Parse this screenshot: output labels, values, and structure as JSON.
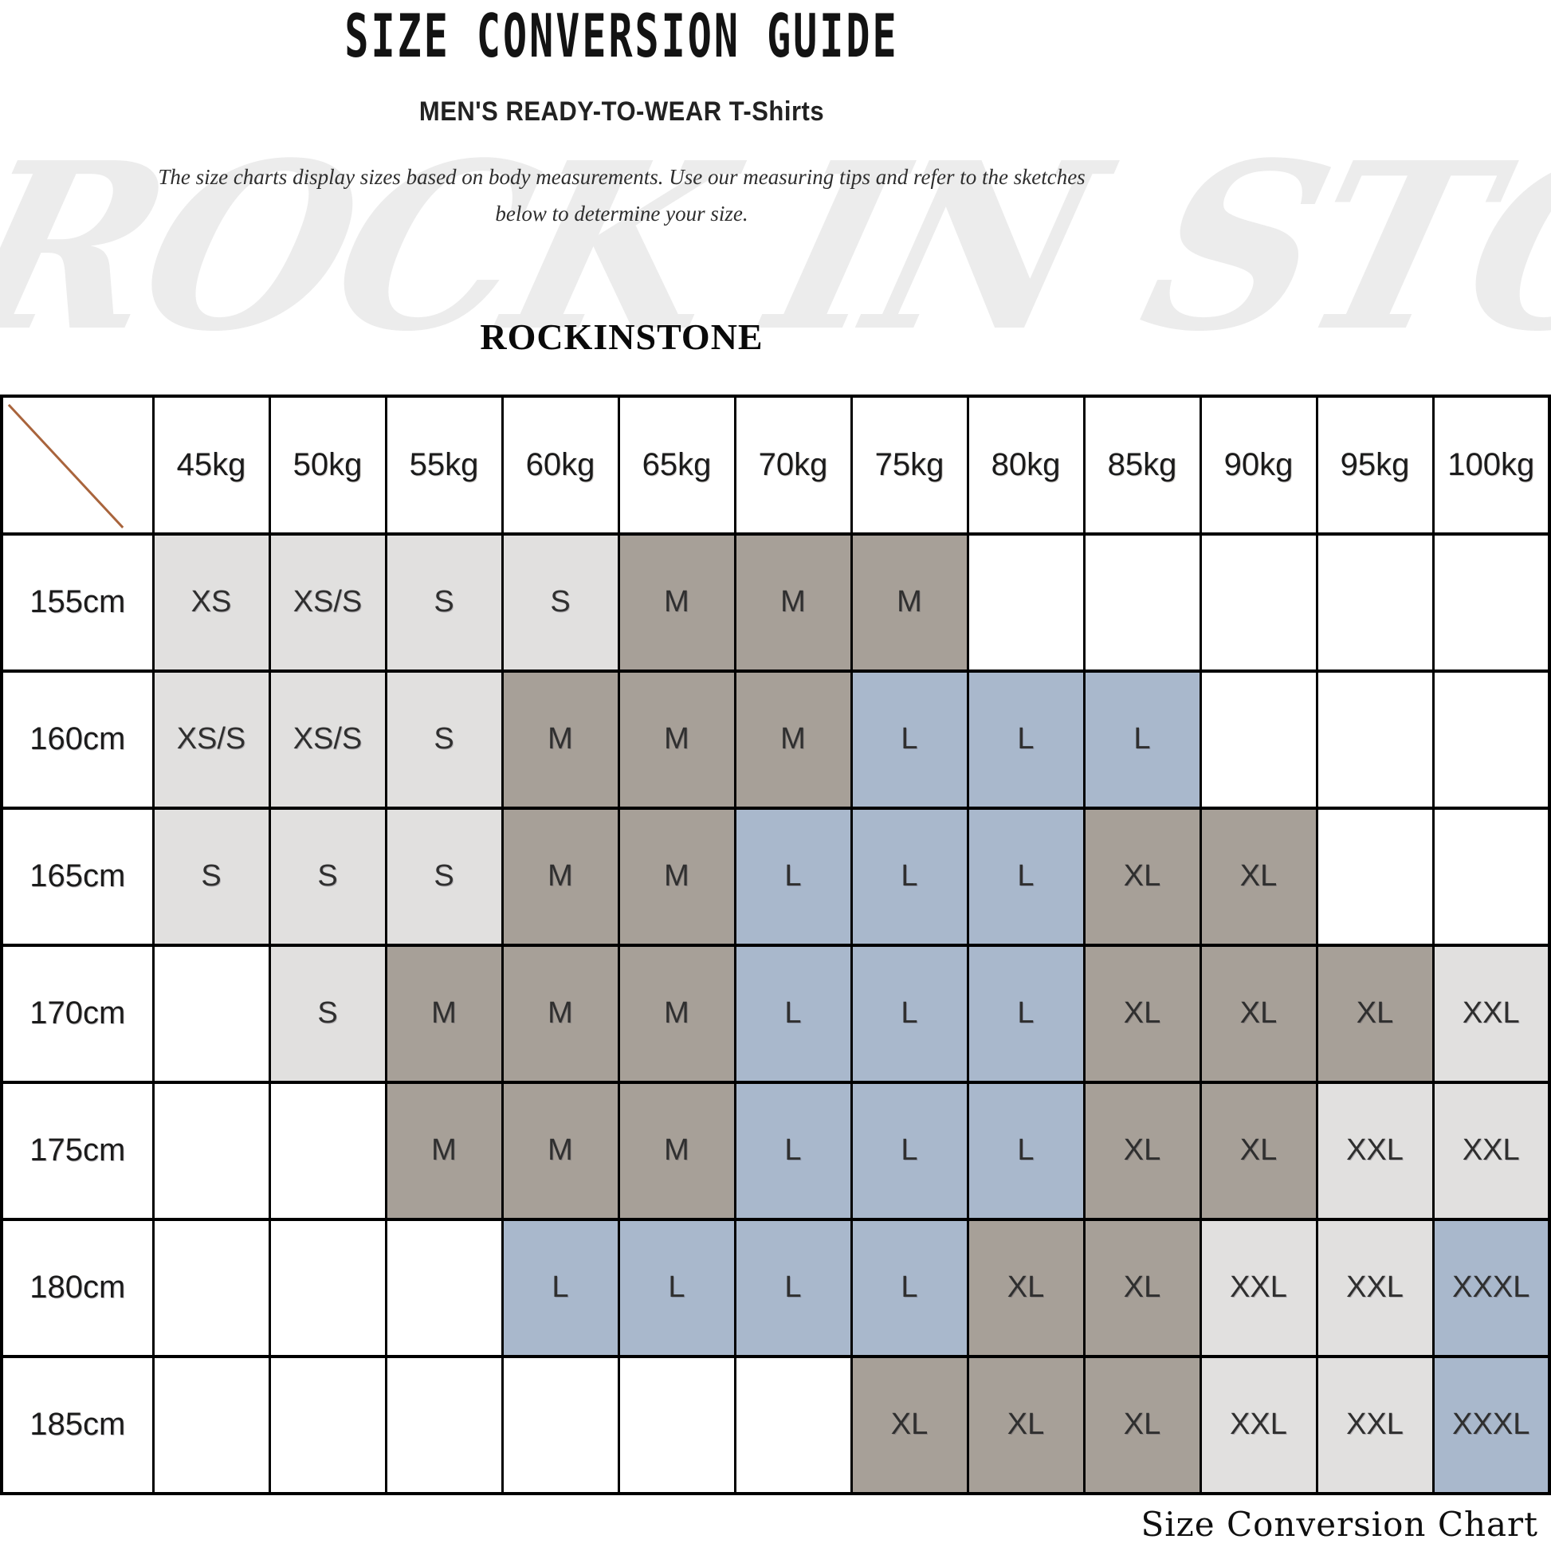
{
  "page": {
    "title": "SIZE CONVERSION GUIDE",
    "subtitle": "MEN'S READY-TO-WEAR T-Shirts",
    "description": {
      "line1": "The size charts display sizes based on body measurements. Use our measuring tips and refer to the sketches",
      "line2": "below to determine your size."
    },
    "brand": "ROCKINSTONE",
    "watermark": "ROCK IN STONE",
    "footer_label": "Size Conversion Chart"
  },
  "colors": {
    "light": "#e1e0df",
    "taupe": "#a7a098",
    "blue": "#a9b8cc",
    "diagonal": "#a9643c",
    "border": "#000000"
  },
  "table": {
    "corner_label": "",
    "weights": [
      "45kg",
      "50kg",
      "55kg",
      "60kg",
      "65kg",
      "70kg",
      "75kg",
      "80kg",
      "85kg",
      "90kg",
      "95kg",
      "100kg"
    ],
    "rows": [
      {
        "height": "155cm",
        "cells": [
          {
            "v": "XS",
            "c": "light"
          },
          {
            "v": "XS/S",
            "c": "light"
          },
          {
            "v": "S",
            "c": "light"
          },
          {
            "v": "S",
            "c": "light"
          },
          {
            "v": "M",
            "c": "taupe"
          },
          {
            "v": "M",
            "c": "taupe"
          },
          {
            "v": "M",
            "c": "taupe"
          },
          {
            "v": "",
            "c": ""
          },
          {
            "v": "",
            "c": ""
          },
          {
            "v": "",
            "c": ""
          },
          {
            "v": "",
            "c": ""
          },
          {
            "v": "",
            "c": ""
          }
        ]
      },
      {
        "height": "160cm",
        "cells": [
          {
            "v": "XS/S",
            "c": "light"
          },
          {
            "v": "XS/S",
            "c": "light"
          },
          {
            "v": "S",
            "c": "light"
          },
          {
            "v": "M",
            "c": "taupe"
          },
          {
            "v": "M",
            "c": "taupe"
          },
          {
            "v": "M",
            "c": "taupe"
          },
          {
            "v": "L",
            "c": "blue"
          },
          {
            "v": "L",
            "c": "blue"
          },
          {
            "v": "L",
            "c": "blue"
          },
          {
            "v": "",
            "c": ""
          },
          {
            "v": "",
            "c": ""
          },
          {
            "v": "",
            "c": ""
          }
        ]
      },
      {
        "height": "165cm",
        "cells": [
          {
            "v": "S",
            "c": "light"
          },
          {
            "v": "S",
            "c": "light"
          },
          {
            "v": "S",
            "c": "light"
          },
          {
            "v": "M",
            "c": "taupe"
          },
          {
            "v": "M",
            "c": "taupe"
          },
          {
            "v": "L",
            "c": "blue"
          },
          {
            "v": "L",
            "c": "blue"
          },
          {
            "v": "L",
            "c": "blue"
          },
          {
            "v": "XL",
            "c": "taupe"
          },
          {
            "v": "XL",
            "c": "taupe"
          },
          {
            "v": "",
            "c": ""
          },
          {
            "v": "",
            "c": ""
          }
        ]
      },
      {
        "height": "170cm",
        "cells": [
          {
            "v": "",
            "c": ""
          },
          {
            "v": "S",
            "c": "light"
          },
          {
            "v": "M",
            "c": "taupe"
          },
          {
            "v": "M",
            "c": "taupe"
          },
          {
            "v": "M",
            "c": "taupe"
          },
          {
            "v": "L",
            "c": "blue"
          },
          {
            "v": "L",
            "c": "blue"
          },
          {
            "v": "L",
            "c": "blue"
          },
          {
            "v": "XL",
            "c": "taupe"
          },
          {
            "v": "XL",
            "c": "taupe"
          },
          {
            "v": "XL",
            "c": "taupe"
          },
          {
            "v": "XXL",
            "c": "light"
          }
        ]
      },
      {
        "height": "175cm",
        "cells": [
          {
            "v": "",
            "c": ""
          },
          {
            "v": "",
            "c": ""
          },
          {
            "v": "M",
            "c": "taupe"
          },
          {
            "v": "M",
            "c": "taupe"
          },
          {
            "v": "M",
            "c": "taupe"
          },
          {
            "v": "L",
            "c": "blue"
          },
          {
            "v": "L",
            "c": "blue"
          },
          {
            "v": "L",
            "c": "blue"
          },
          {
            "v": "XL",
            "c": "taupe"
          },
          {
            "v": "XL",
            "c": "taupe"
          },
          {
            "v": "XXL",
            "c": "light"
          },
          {
            "v": "XXL",
            "c": "light"
          }
        ]
      },
      {
        "height": "180cm",
        "cells": [
          {
            "v": "",
            "c": ""
          },
          {
            "v": "",
            "c": ""
          },
          {
            "v": "",
            "c": ""
          },
          {
            "v": "L",
            "c": "blue"
          },
          {
            "v": "L",
            "c": "blue"
          },
          {
            "v": "L",
            "c": "blue"
          },
          {
            "v": "L",
            "c": "blue"
          },
          {
            "v": "XL",
            "c": "taupe"
          },
          {
            "v": "XL",
            "c": "taupe"
          },
          {
            "v": "XXL",
            "c": "light"
          },
          {
            "v": "XXL",
            "c": "light"
          },
          {
            "v": "XXXL",
            "c": "blue"
          }
        ]
      },
      {
        "height": "185cm",
        "cells": [
          {
            "v": "",
            "c": ""
          },
          {
            "v": "",
            "c": ""
          },
          {
            "v": "",
            "c": ""
          },
          {
            "v": "",
            "c": ""
          },
          {
            "v": "",
            "c": ""
          },
          {
            "v": "",
            "c": ""
          },
          {
            "v": "XL",
            "c": "taupe"
          },
          {
            "v": "XL",
            "c": "taupe"
          },
          {
            "v": "XL",
            "c": "taupe"
          },
          {
            "v": "XXL",
            "c": "light"
          },
          {
            "v": "XXL",
            "c": "light"
          },
          {
            "v": "XXXL",
            "c": "blue"
          }
        ]
      }
    ]
  }
}
